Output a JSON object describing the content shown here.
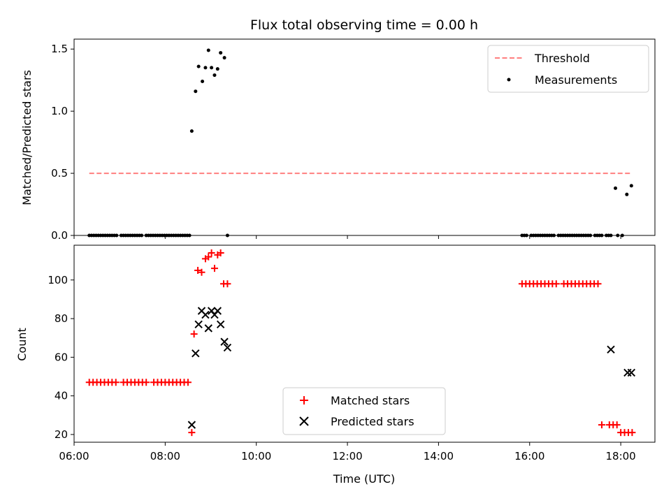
{
  "chart_data": [
    {
      "type": "scatter",
      "title": "Flux total observing time = 0.00 h",
      "xlabel": "",
      "ylabel": "Matched/Predicted stars",
      "xlim": [
        "06:00",
        "18:45"
      ],
      "ylim": [
        0,
        1.58
      ],
      "yticks": [
        0.0,
        0.5,
        1.0,
        1.5
      ],
      "yticklabels": [
        "0.0",
        "0.5",
        "1.0",
        "1.5"
      ],
      "legend_position": "upper right",
      "threshold": {
        "name": "Threshold",
        "value": 0.5,
        "x_range": [
          "06:20",
          "18:15"
        ],
        "color": "#ff7f7f",
        "style": "dashed"
      },
      "series": [
        {
          "name": "Measurements",
          "marker": "dot",
          "color": "#000000",
          "x": [
            "06:20",
            "06:23",
            "06:26",
            "06:29",
            "06:32",
            "06:35",
            "06:38",
            "06:41",
            "06:44",
            "06:47",
            "06:50",
            "06:53",
            "06:56",
            "07:02",
            "07:05",
            "07:08",
            "07:11",
            "07:14",
            "07:17",
            "07:20",
            "07:23",
            "07:26",
            "07:29",
            "07:35",
            "07:38",
            "07:41",
            "07:44",
            "07:47",
            "07:50",
            "07:53",
            "07:56",
            "07:59",
            "08:02",
            "08:05",
            "08:08",
            "08:11",
            "08:14",
            "08:17",
            "08:20",
            "08:23",
            "08:26",
            "08:29",
            "08:32",
            "08:35",
            "08:40",
            "08:44",
            "08:49",
            "08:53",
            "08:57",
            "09:01",
            "09:05",
            "09:09",
            "09:13",
            "09:18",
            "09:22",
            "15:50",
            "15:53",
            "15:56",
            "16:02",
            "16:05",
            "16:08",
            "16:11",
            "16:14",
            "16:17",
            "16:20",
            "16:23",
            "16:26",
            "16:29",
            "16:32",
            "16:38",
            "16:41",
            "16:44",
            "16:47",
            "16:50",
            "16:53",
            "16:56",
            "16:59",
            "17:02",
            "17:05",
            "17:08",
            "17:11",
            "17:14",
            "17:17",
            "17:20",
            "17:26",
            "17:29",
            "17:32",
            "17:35",
            "17:41",
            "17:44",
            "17:47",
            "17:53",
            "17:56",
            "18:02",
            "18:08",
            "18:14"
          ],
          "y": [
            0,
            0,
            0,
            0,
            0,
            0,
            0,
            0,
            0,
            0,
            0,
            0,
            0,
            0,
            0,
            0,
            0,
            0,
            0,
            0,
            0,
            0,
            0,
            0,
            0,
            0,
            0,
            0,
            0,
            0,
            0,
            0,
            0,
            0,
            0,
            0,
            0,
            0,
            0,
            0,
            0,
            0,
            0,
            0.84,
            1.16,
            1.36,
            1.24,
            1.35,
            1.49,
            1.35,
            1.29,
            1.34,
            1.47,
            1.43,
            0,
            0,
            0,
            0,
            0,
            0,
            0,
            0,
            0,
            0,
            0,
            0,
            0,
            0,
            0,
            0,
            0,
            0,
            0,
            0,
            0,
            0,
            0,
            0,
            0,
            0,
            0,
            0,
            0,
            0,
            0,
            0,
            0,
            0,
            0,
            0,
            0,
            0.38,
            0,
            0,
            0.33,
            0.4
          ]
        }
      ]
    },
    {
      "type": "scatter",
      "title": "",
      "xlabel": "Time (UTC)",
      "ylabel": "Count",
      "xlim": [
        "06:00",
        "18:45"
      ],
      "xticks": [
        "06:00",
        "08:00",
        "10:00",
        "12:00",
        "14:00",
        "16:00",
        "18:00"
      ],
      "ylim": [
        16,
        118
      ],
      "yticks": [
        20,
        40,
        60,
        80,
        100
      ],
      "legend_position": "lower center",
      "series": [
        {
          "name": "Matched stars",
          "marker": "plus",
          "color": "#ff0000",
          "x": [
            "06:20",
            "06:25",
            "06:30",
            "06:35",
            "06:40",
            "06:45",
            "06:50",
            "06:55",
            "07:05",
            "07:10",
            "07:15",
            "07:20",
            "07:25",
            "07:30",
            "07:35",
            "07:45",
            "07:50",
            "07:55",
            "08:00",
            "08:05",
            "08:10",
            "08:15",
            "08:20",
            "08:25",
            "08:30",
            "08:35",
            "08:38",
            "08:43",
            "08:48",
            "08:53",
            "08:57",
            "09:01",
            "09:05",
            "09:09",
            "09:13",
            "09:17",
            "09:22",
            "15:50",
            "15:55",
            "16:00",
            "16:05",
            "16:10",
            "16:15",
            "16:20",
            "16:25",
            "16:30",
            "16:35",
            "16:45",
            "16:50",
            "16:55",
            "17:00",
            "17:05",
            "17:10",
            "17:15",
            "17:20",
            "17:25",
            "17:30",
            "17:35",
            "17:45",
            "17:50",
            "17:55",
            "18:00",
            "18:05",
            "18:10",
            "18:15"
          ],
          "y": [
            47,
            47,
            47,
            47,
            47,
            47,
            47,
            47,
            47,
            47,
            47,
            47,
            47,
            47,
            47,
            47,
            47,
            47,
            47,
            47,
            47,
            47,
            47,
            47,
            47,
            21,
            72,
            105,
            104,
            111,
            112,
            114,
            106,
            113,
            114,
            98,
            98,
            98,
            98,
            98,
            98,
            98,
            98,
            98,
            98,
            98,
            98,
            98,
            98,
            98,
            98,
            98,
            98,
            98,
            98,
            98,
            98,
            25,
            25,
            25,
            25,
            21,
            21,
            21,
            21
          ]
        },
        {
          "name": "Predicted stars",
          "marker": "x",
          "color": "#000000",
          "x": [
            "08:35",
            "08:40",
            "08:44",
            "08:48",
            "08:53",
            "08:57",
            "09:01",
            "09:05",
            "09:09",
            "09:13",
            "09:18",
            "09:22",
            "17:47",
            "18:09",
            "18:14"
          ],
          "y": [
            25,
            62,
            77,
            84,
            82,
            75,
            84,
            82,
            84,
            77,
            68,
            65,
            64,
            52,
            52
          ]
        }
      ]
    }
  ]
}
